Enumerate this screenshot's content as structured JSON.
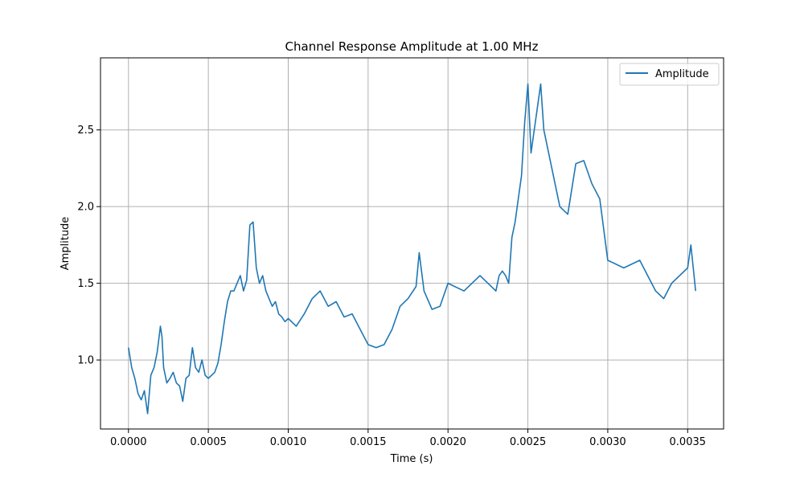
{
  "chart_data": {
    "type": "line",
    "title": "Channel Response Amplitude at 1.00 MHz",
    "xlabel": "Time (s)",
    "ylabel": "Amplitude",
    "xlim": [
      -0.000175,
      0.003725
    ],
    "ylim": [
      0.55,
      2.97
    ],
    "x_ticks": [
      0.0,
      0.0005,
      0.001,
      0.0015,
      0.002,
      0.0025,
      0.003,
      0.0035
    ],
    "x_tick_labels": [
      "0.0000",
      "0.0005",
      "0.0010",
      "0.0015",
      "0.0020",
      "0.0025",
      "0.0030",
      "0.0035"
    ],
    "y_ticks": [
      1.0,
      1.5,
      2.0,
      2.5
    ],
    "y_tick_labels": [
      "1.0",
      "1.5",
      "2.0",
      "2.5"
    ],
    "grid": true,
    "legend_position": "top-right",
    "series": [
      {
        "name": "Amplitude",
        "color": "#1f77b4",
        "x": [
          0.0,
          2e-05,
          4e-05,
          6e-05,
          8e-05,
          0.0001,
          0.00012,
          0.00014,
          0.00016,
          0.00018,
          0.0002,
          0.00021,
          0.00022,
          0.00024,
          0.00026,
          0.00028,
          0.0003,
          0.00032,
          0.00034,
          0.00036,
          0.00038,
          0.0004,
          0.00042,
          0.00044,
          0.00046,
          0.00048,
          0.0005,
          0.00052,
          0.00054,
          0.00056,
          0.00058,
          0.0006,
          0.00062,
          0.00064,
          0.00066,
          0.00068,
          0.0007,
          0.00072,
          0.00074,
          0.00076,
          0.00078,
          0.0008,
          0.00082,
          0.00084,
          0.00086,
          0.00088,
          0.0009,
          0.00092,
          0.00094,
          0.00096,
          0.00098,
          0.001,
          0.00105,
          0.0011,
          0.00115,
          0.0012,
          0.00125,
          0.0013,
          0.00135,
          0.0014,
          0.00145,
          0.0015,
          0.00155,
          0.0016,
          0.00165,
          0.0017,
          0.00175,
          0.0018,
          0.00182,
          0.00185,
          0.0019,
          0.00195,
          0.002,
          0.0021,
          0.0022,
          0.0023,
          0.00232,
          0.00234,
          0.00236,
          0.00238,
          0.0024,
          0.00242,
          0.00244,
          0.00246,
          0.00248,
          0.0025,
          0.00252,
          0.00254,
          0.00256,
          0.00258,
          0.0026,
          0.0027,
          0.00275,
          0.0028,
          0.00285,
          0.0029,
          0.00295,
          0.003,
          0.0031,
          0.0032,
          0.0033,
          0.00335,
          0.0034,
          0.0035,
          0.00352,
          0.00355
        ],
        "values": [
          1.08,
          0.95,
          0.88,
          0.78,
          0.74,
          0.8,
          0.65,
          0.9,
          0.95,
          1.05,
          1.22,
          1.15,
          0.95,
          0.85,
          0.88,
          0.92,
          0.85,
          0.83,
          0.73,
          0.88,
          0.9,
          1.08,
          0.95,
          0.92,
          1.0,
          0.9,
          0.88,
          0.9,
          0.92,
          0.98,
          1.1,
          1.25,
          1.38,
          1.45,
          1.45,
          1.5,
          1.55,
          1.45,
          1.52,
          1.88,
          1.9,
          1.6,
          1.5,
          1.55,
          1.45,
          1.4,
          1.35,
          1.38,
          1.3,
          1.28,
          1.25,
          1.27,
          1.22,
          1.3,
          1.4,
          1.45,
          1.35,
          1.38,
          1.28,
          1.3,
          1.2,
          1.1,
          1.08,
          1.1,
          1.2,
          1.35,
          1.4,
          1.48,
          1.7,
          1.45,
          1.33,
          1.35,
          1.5,
          1.45,
          1.55,
          1.45,
          1.55,
          1.58,
          1.55,
          1.5,
          1.8,
          1.9,
          2.05,
          2.2,
          2.55,
          2.8,
          2.35,
          2.5,
          2.65,
          2.8,
          2.5,
          2.0,
          1.95,
          2.28,
          2.3,
          2.15,
          2.05,
          1.65,
          1.6,
          1.65,
          1.45,
          1.4,
          1.5,
          1.6,
          1.75,
          1.45
        ]
      }
    ]
  }
}
